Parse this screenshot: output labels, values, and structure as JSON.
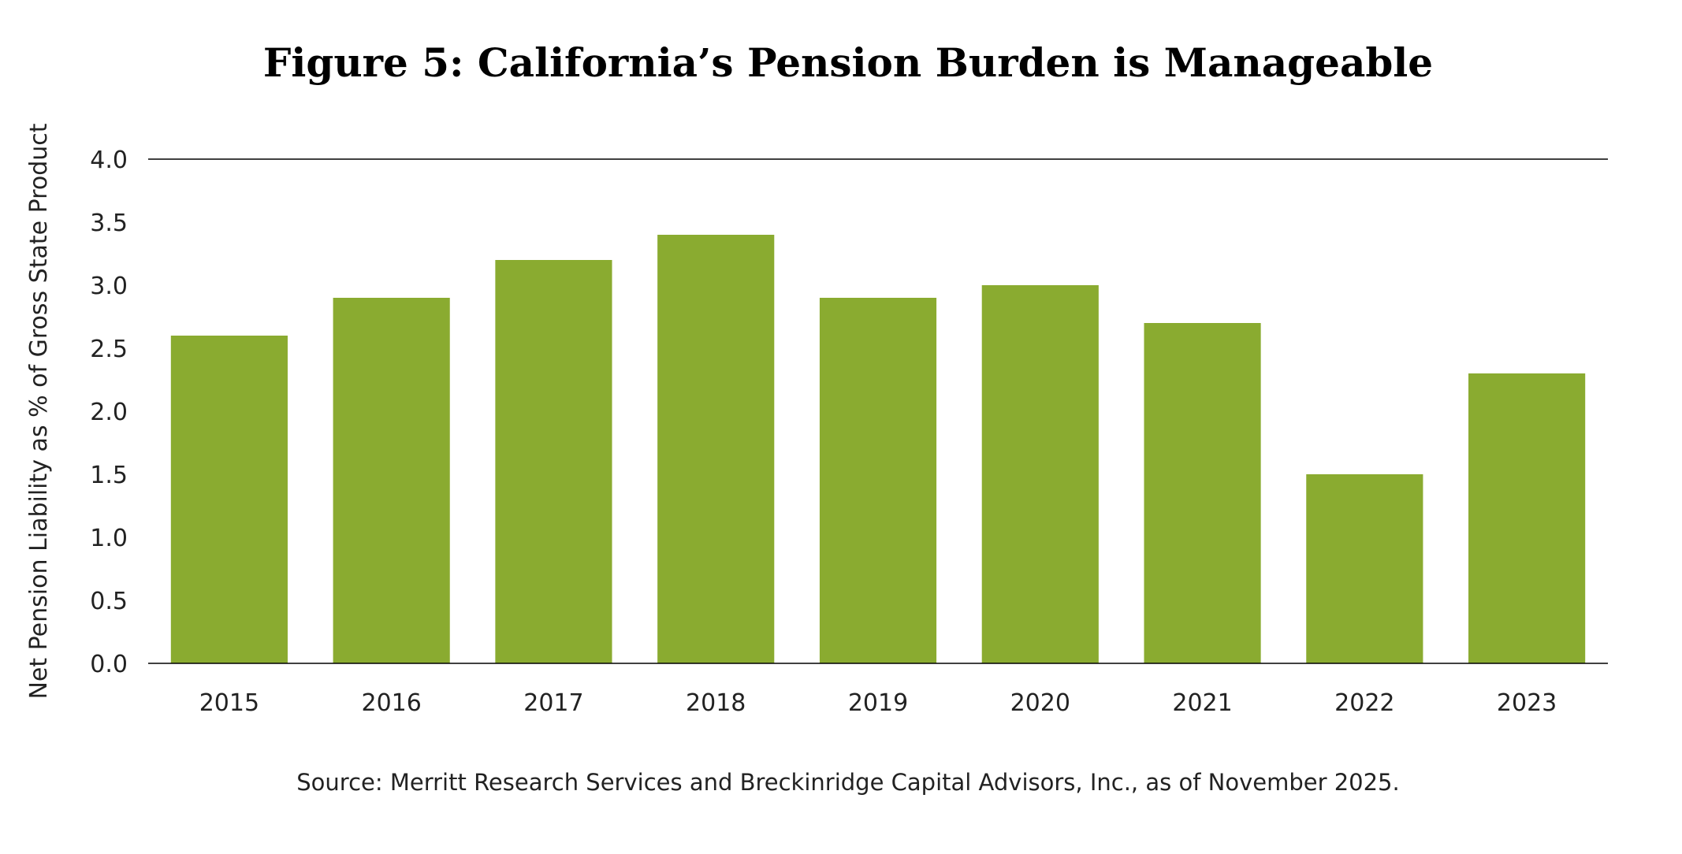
{
  "colors": {
    "bar": "#8aab30",
    "axis": "#000000",
    "text": "#222222"
  },
  "chart_data": {
    "type": "bar",
    "title": "Figure 5: California’s Pension Burden is Manageable",
    "xlabel": "",
    "ylabel": "Net Pension Liability as % of Gross State Product",
    "categories": [
      "2015",
      "2016",
      "2017",
      "2018",
      "2019",
      "2020",
      "2021",
      "2022",
      "2023"
    ],
    "values": [
      2.6,
      2.9,
      3.2,
      3.4,
      2.9,
      3.0,
      2.7,
      1.5,
      2.3
    ],
    "ylim": [
      0,
      4.0
    ],
    "yticks": [
      "0.0",
      "0.5",
      "1.0",
      "1.5",
      "2.0",
      "2.5",
      "3.0",
      "3.5",
      "4.0"
    ],
    "grid": false,
    "source": "Source: Merritt Research Services and Breckinridge Capital Advisors, Inc., as of November 2025."
  }
}
